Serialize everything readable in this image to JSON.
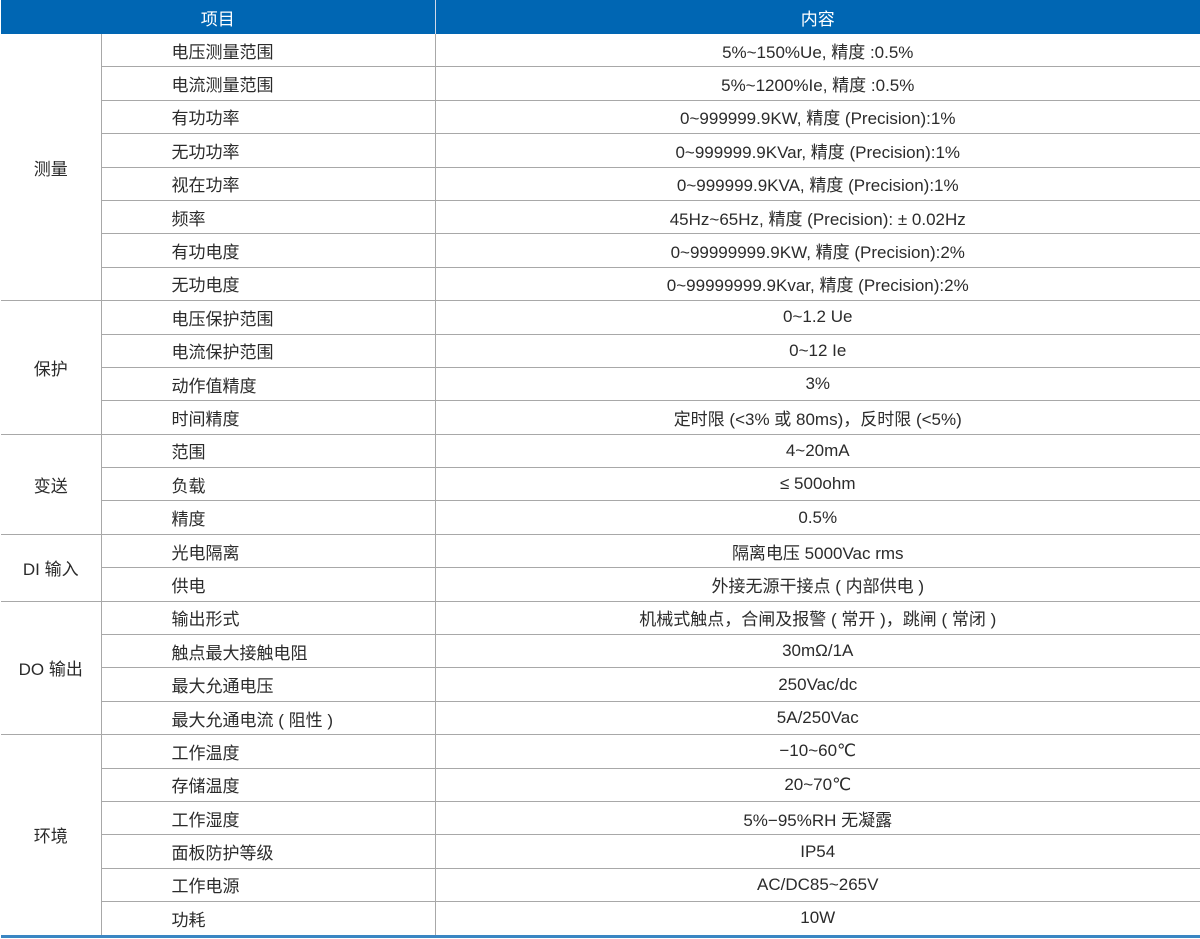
{
  "header": {
    "item": "项目",
    "content": "内容"
  },
  "colors": {
    "header_bg": "#0066b3",
    "grid": "#a8a8a8",
    "bottom_rule": "#3a86c3"
  },
  "groups": [
    {
      "name": "测量",
      "rows": [
        {
          "item": "电压测量范围",
          "value": "5%~150%Ue, 精度 :0.5%"
        },
        {
          "item": "电流测量范围",
          "value": "5%~1200%Ie, 精度 :0.5%"
        },
        {
          "item": "有功功率",
          "value": "0~999999.9KW, 精度 (Precision):1%"
        },
        {
          "item": "无功功率",
          "value": "0~999999.9KVar, 精度 (Precision):1%"
        },
        {
          "item": "视在功率",
          "value": "0~999999.9KVA, 精度 (Precision):1%"
        },
        {
          "item": "频率",
          "value": "45Hz~65Hz, 精度 (Precision): ± 0.02Hz"
        },
        {
          "item": "有功电度",
          "value": "0~99999999.9KW, 精度 (Precision):2%"
        },
        {
          "item": "无功电度",
          "value": "0~99999999.9Kvar, 精度 (Precision):2%"
        }
      ]
    },
    {
      "name": "保护",
      "rows": [
        {
          "item": "电压保护范围",
          "value": "0~1.2 Ue"
        },
        {
          "item": "电流保护范围",
          "value": "0~12 Ie"
        },
        {
          "item": "动作值精度",
          "value": "3%"
        },
        {
          "item": "时间精度",
          "value": "定时限 (<3% 或 80ms)，反时限 (<5%)"
        }
      ]
    },
    {
      "name": "变送",
      "rows": [
        {
          "item": "范围",
          "value": "4~20mA"
        },
        {
          "item": "负载",
          "value": "≤ 500ohm"
        },
        {
          "item": "精度",
          "value": "0.5%"
        }
      ]
    },
    {
      "name": "DI 输入",
      "rows": [
        {
          "item": "光电隔离",
          "value": "隔离电压 5000Vac rms"
        },
        {
          "item": "供电",
          "value": "外接无源干接点 ( 内部供电 )"
        }
      ]
    },
    {
      "name": "DO 输出",
      "rows": [
        {
          "item": "输出形式",
          "value": "机械式触点，合闸及报警 ( 常开 )，跳闸 ( 常闭 )"
        },
        {
          "item": "触点最大接触电阻",
          "value": "30mΩ/1A"
        },
        {
          "item": "最大允通电压",
          "value": "250Vac/dc"
        },
        {
          "item": "最大允通电流 ( 阻性 )",
          "value": "5A/250Vac"
        }
      ]
    },
    {
      "name": "环境",
      "rows": [
        {
          "item": "工作温度",
          "value": "−10~60℃"
        },
        {
          "item": "存储温度",
          "value": "20~70℃"
        },
        {
          "item": "工作湿度",
          "value": "5%−95%RH 无凝露"
        },
        {
          "item": "面板防护等级",
          "value": "IP54"
        },
        {
          "item": "工作电源",
          "value": "AC/DC85~265V"
        },
        {
          "item": "功耗",
          "value": "10W"
        }
      ]
    }
  ]
}
